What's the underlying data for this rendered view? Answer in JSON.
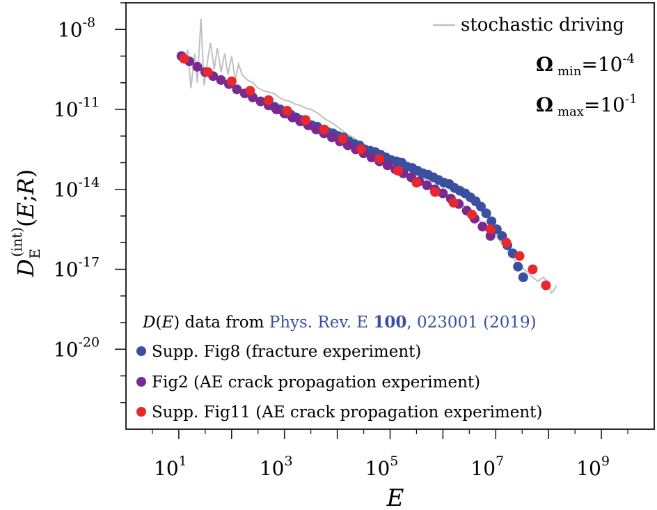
{
  "chart_data": {
    "type": "scatter",
    "xscale": "log",
    "yscale": "log",
    "xlabel": "E",
    "ylabel": "D_E^(int)(E;R)",
    "xlim": [
      1,
      10000000000.0
    ],
    "ylim": [
      1e-23,
      1e-07
    ],
    "x_ticks": [
      {
        "value": 10,
        "base": "10",
        "exp": "1"
      },
      {
        "value": 1000,
        "base": "10",
        "exp": "3"
      },
      {
        "value": 100000,
        "base": "10",
        "exp": "5"
      },
      {
        "value": 10000000,
        "base": "10",
        "exp": "7"
      },
      {
        "value": 1000000000,
        "base": "10",
        "exp": "9"
      }
    ],
    "y_ticks": [
      {
        "value": 1e-08,
        "base": "10",
        "exp": "-8"
      },
      {
        "value": 1e-11,
        "base": "10",
        "exp": "-11"
      },
      {
        "value": 1e-14,
        "base": "10",
        "exp": "-14"
      },
      {
        "value": 1e-17,
        "base": "10",
        "exp": "-17"
      },
      {
        "value": 1e-20,
        "base": "10",
        "exp": "-20"
      }
    ],
    "line": {
      "name": "stochastic driving",
      "color": "#c0c0c0",
      "logx": [
        1.1,
        1.17,
        1.23,
        1.3,
        1.35,
        1.42,
        1.48,
        1.55,
        1.6,
        1.67,
        1.73,
        1.8,
        1.87,
        1.93,
        2.0,
        2.07,
        2.13,
        2.2,
        2.3,
        2.4,
        2.5,
        2.6,
        2.7,
        2.8,
        2.9,
        3.0,
        3.1,
        3.2,
        3.3,
        3.4,
        3.5,
        3.6,
        3.7,
        3.8,
        3.9,
        4.0,
        4.1,
        4.2,
        4.3,
        4.4,
        4.5,
        4.6,
        4.7,
        4.8,
        4.9,
        5.0,
        5.1,
        5.2,
        5.3,
        5.4,
        5.5,
        5.6,
        5.7,
        5.8,
        5.9,
        6.0,
        6.1,
        6.2,
        6.3,
        6.4,
        6.5,
        6.6,
        6.7,
        6.8,
        6.9,
        7.0,
        7.1,
        7.2,
        7.3,
        7.4,
        7.5,
        7.6,
        7.7,
        7.8,
        7.9,
        8.0,
        8.05,
        8.1,
        8.15
      ],
      "logy": [
        -9.1,
        -8.8,
        -10.2,
        -8.9,
        -10.0,
        -7.6,
        -10.1,
        -9.1,
        -8.5,
        -9.5,
        -8.7,
        -9.6,
        -8.9,
        -9.7,
        -9.0,
        -9.9,
        -9.3,
        -9.7,
        -9.9,
        -10.0,
        -10.2,
        -10.3,
        -10.35,
        -10.4,
        -10.55,
        -10.65,
        -10.7,
        -10.8,
        -10.85,
        -10.95,
        -11.0,
        -11.1,
        -11.25,
        -11.4,
        -11.5,
        -11.65,
        -11.8,
        -11.95,
        -12.05,
        -12.2,
        -12.35,
        -12.45,
        -12.5,
        -12.6,
        -12.75,
        -12.85,
        -12.9,
        -13.05,
        -13.2,
        -13.35,
        -13.45,
        -13.55,
        -13.7,
        -13.85,
        -13.95,
        -14.05,
        -14.25,
        -14.35,
        -14.5,
        -14.65,
        -14.75,
        -14.95,
        -15.2,
        -15.35,
        -15.55,
        -15.7,
        -16.0,
        -16.2,
        -16.5,
        -16.8,
        -16.95,
        -17.1,
        -17.3,
        -17.45,
        -17.3,
        -17.5,
        -17.9,
        -17.8,
        -17.6
      ]
    },
    "series": [
      {
        "name": "Supp. Fig8 (fracture experiment)",
        "color": "#3a4fa0",
        "logx": [
          2.81,
          2.92,
          3.02,
          3.12,
          3.22,
          3.32,
          3.42,
          3.52,
          3.62,
          3.72,
          3.82,
          3.92,
          4.02,
          4.12,
          4.22,
          4.32,
          4.42,
          4.52,
          4.62,
          4.72,
          4.82,
          4.92,
          5.02,
          5.12,
          5.22,
          5.32,
          5.42,
          5.52,
          5.62,
          5.72,
          5.82,
          5.92,
          6.02,
          6.12,
          6.22,
          6.32,
          6.42,
          6.52,
          6.62,
          6.72,
          6.82,
          6.92,
          7.02,
          7.12,
          7.22,
          7.32,
          7.42,
          7.52
        ],
        "logy": [
          -10.9,
          -11.0,
          -11.15,
          -11.2,
          -11.3,
          -11.4,
          -11.5,
          -11.6,
          -11.65,
          -11.8,
          -11.85,
          -11.9,
          -12.0,
          -12.05,
          -12.2,
          -12.3,
          -12.35,
          -12.5,
          -12.55,
          -12.6,
          -12.7,
          -12.8,
          -12.9,
          -12.95,
          -13.0,
          -13.15,
          -13.2,
          -13.3,
          -13.4,
          -13.45,
          -13.55,
          -13.65,
          -13.75,
          -13.8,
          -13.95,
          -14.05,
          -14.15,
          -14.3,
          -14.45,
          -14.65,
          -14.9,
          -15.2,
          -15.5,
          -15.75,
          -16.1,
          -16.4,
          -16.9,
          -17.3
        ]
      },
      {
        "name": "Fig2 (AE crack propagation experiment)",
        "color": "#7a2a8e",
        "logx": [
          1.05,
          1.2,
          1.35,
          1.5,
          1.65,
          1.8,
          1.95,
          2.1,
          2.25,
          2.4,
          2.55,
          2.7,
          2.85,
          3.0,
          3.15,
          3.3,
          3.45,
          3.6,
          3.75,
          3.9,
          4.05,
          4.2,
          4.35,
          4.5,
          4.65,
          4.8,
          4.95,
          5.1,
          5.25,
          5.4,
          5.55,
          5.7,
          5.85,
          6.0,
          6.15,
          6.3,
          6.45,
          6.6,
          6.75,
          6.9
        ],
        "logy": [
          -9.0,
          -9.2,
          -9.4,
          -9.6,
          -9.75,
          -9.9,
          -10.05,
          -10.25,
          -10.4,
          -10.55,
          -10.7,
          -10.85,
          -11.0,
          -11.15,
          -11.3,
          -11.45,
          -11.6,
          -11.75,
          -11.9,
          -12.05,
          -12.2,
          -12.35,
          -12.5,
          -12.65,
          -12.8,
          -12.95,
          -13.1,
          -13.25,
          -13.4,
          -13.55,
          -13.7,
          -13.85,
          -14.0,
          -14.15,
          -14.35,
          -14.55,
          -14.8,
          -15.1,
          -15.4,
          -15.75
        ]
      },
      {
        "name": "Supp. Fig11 (AE crack propagation experiment)",
        "color": "#e8282d",
        "logx": [
          1.1,
          1.55,
          2.0,
          2.35,
          2.7,
          3.05,
          3.4,
          3.75,
          4.1,
          4.45,
          4.8,
          5.15,
          5.5,
          5.85,
          6.2,
          6.55,
          6.9,
          7.2,
          7.45,
          7.7,
          7.95
        ],
        "logy": [
          -9.1,
          -9.6,
          -9.95,
          -10.3,
          -10.65,
          -11.05,
          -11.4,
          -11.75,
          -12.1,
          -12.5,
          -12.85,
          -13.3,
          -13.75,
          -14.1,
          -14.5,
          -14.95,
          -15.5,
          -16.0,
          -16.5,
          -17.0,
          -17.6
        ]
      }
    ],
    "annotations": {
      "omega_min": {
        "symbol": "Ω",
        "sub": "min",
        "eq": "=10",
        "exp": "-4"
      },
      "omega_max": {
        "symbol": "Ω",
        "sub": "max",
        "eq": "=10",
        "exp": "-1"
      },
      "source": {
        "prefix_symbol": "D",
        "prefix_arg": "E",
        "prefix": " data from ",
        "ref_journal": "Phys. Rev. E ",
        "ref_volume": "100",
        "ref_rest": ", 023001 (2019)",
        "ref_color": "#3a4fa0"
      }
    }
  }
}
